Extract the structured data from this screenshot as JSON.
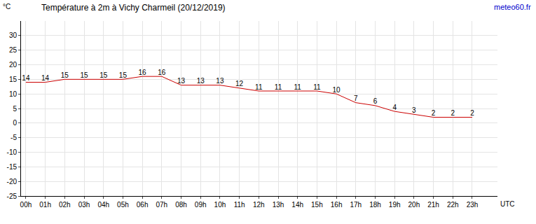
{
  "chart_data": {
    "type": "line",
    "title": "Température à 2m à Vichy Charmeil (20/12/2019)",
    "source": "meteo60.fr",
    "y_label": "°C",
    "x_label": "UTC",
    "categories": [
      "00h",
      "01h",
      "02h",
      "03h",
      "04h",
      "05h",
      "06h",
      "07h",
      "08h",
      "09h",
      "10h",
      "11h",
      "12h",
      "13h",
      "14h",
      "15h",
      "16h",
      "17h",
      "18h",
      "19h",
      "20h",
      "21h",
      "22h",
      "23h"
    ],
    "values": [
      14,
      14,
      15,
      15,
      15,
      15,
      16,
      16,
      13,
      13,
      13,
      12,
      11,
      11,
      11,
      11,
      10,
      7,
      6,
      4,
      3,
      2,
      2,
      2
    ],
    "color": "#cc0000",
    "ylim": [
      -25,
      35
    ],
    "yticks": [
      -25,
      -20,
      -15,
      -10,
      -5,
      0,
      5,
      10,
      15,
      20,
      25,
      30
    ],
    "grid": true,
    "data_labels": true
  }
}
